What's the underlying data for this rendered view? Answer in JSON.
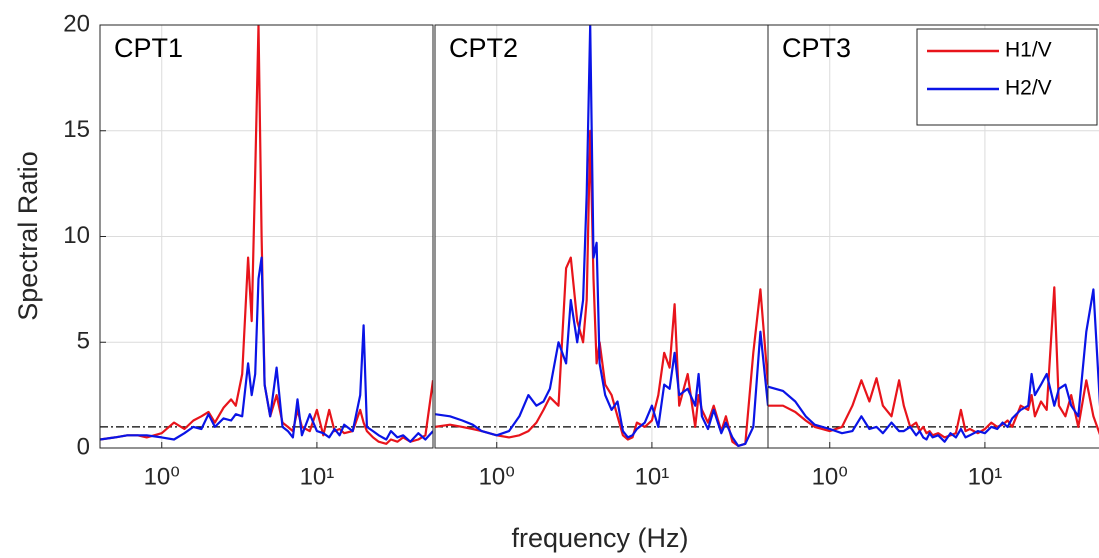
{
  "chart_data": {
    "type": "line",
    "ylabel": "Spectral Ratio",
    "xlabel": "frequency (Hz)",
    "panels": [
      "CPT1",
      "CPT2",
      "CPT3"
    ],
    "log_x": true,
    "grid": true,
    "reference_line": 1,
    "legend": "upper right",
    "xlim": [
      0.4,
      56
    ],
    "ylim": [
      0,
      20
    ],
    "xticks": [
      {
        "value": 1,
        "label": "10⁰"
      },
      {
        "value": 10,
        "label": "10¹"
      }
    ],
    "yticks": [
      0,
      5,
      10,
      15,
      20
    ],
    "x": [
      0.4,
      0.5,
      0.6,
      0.7,
      0.8,
      1,
      1.2,
      1.4,
      1.6,
      1.8,
      2,
      2.2,
      2.5,
      2.8,
      3,
      3.3,
      3.6,
      3.8,
      4,
      4.2,
      4.4,
      4.6,
      5,
      5.5,
      6,
      6.5,
      7,
      7.5,
      8,
      9,
      10,
      11,
      12,
      13,
      14,
      15,
      17,
      19,
      20,
      21,
      23,
      25,
      28,
      30,
      33,
      36,
      40,
      45,
      50,
      56
    ],
    "series": [
      {
        "name": "H1/V",
        "color": "#e8141b",
        "values": [
          [
            0.4,
            0.5,
            0.6,
            0.6,
            0.5,
            0.7,
            1.2,
            0.9,
            1.3,
            1.5,
            1.7,
            1.2,
            1.9,
            2.3,
            2.0,
            3.5,
            9.0,
            6,
            13,
            20,
            10,
            3,
            1.5,
            2.5,
            1.2,
            1.0,
            0.8,
            1.8,
            1.0,
            0.8,
            1.8,
            0.6,
            1.8,
            0.8,
            0.9,
            0.7,
            0.8,
            1.8,
            1.2,
            0.8,
            0.5,
            0.3,
            0.2,
            0.4,
            0.3,
            0.5,
            0.3,
            0.4,
            0.6,
            3.2
          ],
          [
            1.0,
            1.1,
            1.0,
            0.9,
            0.8,
            0.6,
            0.5,
            0.6,
            0.8,
            1.2,
            1.8,
            2.4,
            2.0,
            8.5,
            9.0,
            6,
            5,
            7,
            15,
            8,
            4,
            5.0,
            3.0,
            2.5,
            1.5,
            0.6,
            0.4,
            0.5,
            1.2,
            1.0,
            1.3,
            2.5,
            4.5,
            3.8,
            6.8,
            2.0,
            3.5,
            1.0,
            2.5,
            1.8,
            1.2,
            2.0,
            0.8,
            1.5,
            0.3,
            0.1,
            0.2,
            4.5,
            7.5,
            3.0
          ],
          [
            2.0,
            2.0,
            1.7,
            1.3,
            1.0,
            0.8,
            1.0,
            2.0,
            3.2,
            2.2,
            3.3,
            2.0,
            1.5,
            3.2,
            2.0,
            1.0,
            1.2,
            0.8,
            1.0,
            0.7,
            0.8,
            0.6,
            0.7,
            0.5,
            0.6,
            0.7,
            1.8,
            0.8,
            0.9,
            0.7,
            0.9,
            1.2,
            1.0,
            1.1,
            1.3,
            1.0,
            2.0,
            1.8,
            2.5,
            1.5,
            2.2,
            1.8,
            7.6,
            2.0,
            1.5,
            2.5,
            1.0,
            3.2,
            1.5,
            0.5
          ]
        ]
      },
      {
        "name": "H2/V",
        "color": "#0a14e6",
        "values": [
          [
            0.4,
            0.5,
            0.6,
            0.6,
            0.6,
            0.5,
            0.4,
            0.7,
            1.0,
            0.9,
            1.6,
            1.0,
            1.4,
            1.3,
            1.6,
            1.5,
            4.0,
            2.5,
            3.5,
            8.0,
            9.0,
            3.0,
            1.5,
            3.8,
            1.0,
            0.8,
            0.5,
            2.3,
            0.6,
            1.6,
            0.8,
            0.7,
            0.5,
            0.9,
            0.6,
            1.1,
            0.8,
            2.5,
            5.8,
            1.0,
            0.8,
            0.6,
            0.4,
            0.8,
            0.5,
            0.6,
            0.3,
            0.7,
            0.4,
            0.8
          ],
          [
            1.6,
            1.5,
            1.3,
            1.1,
            0.8,
            0.6,
            0.8,
            1.5,
            2.5,
            2.0,
            2.2,
            2.8,
            5,
            4,
            7,
            5,
            7,
            12,
            20,
            9,
            9.7,
            4,
            2.5,
            1.8,
            2.2,
            0.8,
            0.5,
            0.6,
            0.9,
            1.2,
            2.0,
            1.0,
            3.0,
            2.8,
            4.5,
            2.5,
            2.8,
            2.0,
            3.5,
            1.5,
            0.9,
            1.8,
            0.7,
            1.2,
            0.5,
            0.1,
            0.2,
            1.0,
            5.5,
            2.0
          ],
          [
            2.9,
            2.7,
            2.2,
            1.5,
            1.1,
            0.9,
            0.7,
            0.8,
            1.5,
            0.9,
            1.0,
            0.7,
            1.2,
            0.8,
            0.8,
            1.0,
            0.6,
            0.8,
            0.5,
            0.4,
            0.7,
            0.5,
            0.6,
            0.3,
            0.7,
            0.5,
            0.9,
            0.5,
            0.6,
            0.8,
            0.7,
            1.0,
            0.9,
            1.2,
            1.0,
            1.4,
            1.8,
            2.0,
            3.5,
            2.5,
            3.0,
            3.5,
            2.0,
            2.8,
            3.0,
            2.0,
            1.5,
            5.5,
            7.5,
            1.2
          ]
        ]
      }
    ]
  }
}
